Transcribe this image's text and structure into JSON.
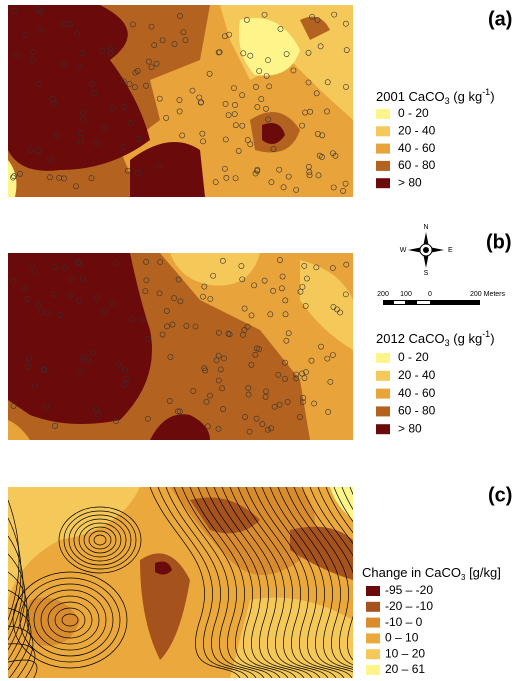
{
  "panels": [
    {
      "label": "(a)",
      "legend": {
        "title": "2001 CaCO",
        "subscript": "3",
        "unit": " (g kg",
        "superscript": "-1",
        "title_end": ")",
        "classes": [
          {
            "label": "0 - 20",
            "color": "#fdf58a"
          },
          {
            "label": "20 - 40",
            "color": "#f5c85a"
          },
          {
            "label": "40 - 60",
            "color": "#e8a33a"
          },
          {
            "label": "60 - 80",
            "color": "#b3631f"
          },
          {
            "label": "> 80",
            "color": "#6b0a0a"
          }
        ]
      }
    },
    {
      "label": "(b)",
      "legend": {
        "title": "2012 CaCO",
        "subscript": "3",
        "unit": " (g kg",
        "superscript": "-1",
        "title_end": ")",
        "classes": [
          {
            "label": "0 - 20",
            "color": "#fdf58a"
          },
          {
            "label": "20 - 40",
            "color": "#f5c85a"
          },
          {
            "label": "40 - 60",
            "color": "#e8a33a"
          },
          {
            "label": "60 - 80",
            "color": "#b3631f"
          },
          {
            "label": "> 80",
            "color": "#6b0a0a"
          }
        ]
      }
    },
    {
      "label": "(c)",
      "legend": {
        "title": "Change in CaCO",
        "subscript": "3",
        "unit": " [g/kg]",
        "classes": [
          {
            "label": "-95 – -20",
            "color": "#6b0a0a"
          },
          {
            "label": "-20 – -10",
            "color": "#a5521c"
          },
          {
            "label": "-10 –   0",
            "color": "#d98c2e"
          },
          {
            "label": "0 – 10",
            "color": "#eba83c"
          },
          {
            "label": "10 – 20",
            "color": "#f5c85a"
          },
          {
            "label": "20 – 61",
            "color": "#fdf58a"
          }
        ]
      }
    }
  ],
  "compass": {
    "north": "N",
    "south": "S",
    "east": "E",
    "west": "W"
  },
  "scale_bar": {
    "labels": [
      "200",
      "100",
      "0",
      "200 Meters"
    ]
  }
}
